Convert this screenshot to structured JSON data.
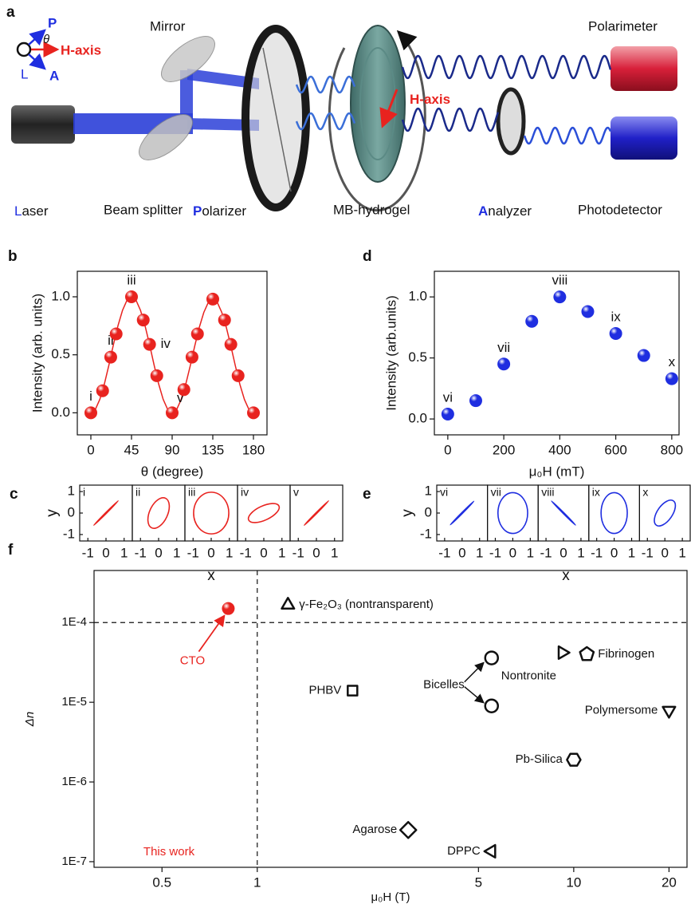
{
  "diagram": {
    "panel": "a",
    "icon": {
      "p": "P",
      "theta": "θ",
      "h_axis": "H-axis",
      "l": "L",
      "a": "A"
    },
    "labels": {
      "mirror": "Mirror",
      "polarimeter": "Polarimeter",
      "h_axis": "H-axis"
    },
    "components": [
      {
        "initial": "L",
        "rest": "aser"
      },
      {
        "text": "Beam splitter"
      },
      {
        "initial": "P",
        "rest": "olarizer"
      },
      {
        "text": "MB-hydrogel"
      },
      {
        "initial": "A",
        "rest": "nalyzer"
      },
      {
        "text": "Photodetector"
      }
    ]
  },
  "chart_data": [
    {
      "type": "scatter",
      "panel": "b",
      "xlabel": "θ (degree)",
      "ylabel": "Intensity (arb. units)",
      "xlim": [
        -15,
        195
      ],
      "ylim": [
        -0.19,
        1.22
      ],
      "xticks": [
        0,
        45,
        90,
        135,
        180
      ],
      "yticks": [
        {
          "value": 0,
          "label": "0.0"
        },
        {
          "value": 0.5,
          "label": "0.5"
        },
        {
          "value": 1,
          "label": "1.0"
        }
      ],
      "color": "#e8231f",
      "x": [
        0,
        13,
        22,
        28,
        45,
        58,
        65,
        73,
        90,
        103,
        112,
        118,
        135,
        148,
        155,
        163,
        180
      ],
      "y": [
        0,
        0.19,
        0.48,
        0.68,
        1.0,
        0.8,
        0.59,
        0.32,
        0,
        0.2,
        0.48,
        0.68,
        0.98,
        0.8,
        0.59,
        0.32,
        0
      ],
      "point_labels": [
        "i",
        null,
        "ii",
        null,
        "iii",
        null,
        "iv",
        null,
        "v",
        null,
        null,
        null,
        null,
        null,
        null,
        null,
        null
      ],
      "fit": {
        "x": [
          0,
          5,
          10,
          15,
          20,
          25,
          30,
          35,
          40,
          45,
          50,
          55,
          60,
          65,
          70,
          75,
          80,
          85,
          90,
          95,
          100,
          105,
          110,
          115,
          120,
          125,
          130,
          135,
          140,
          145,
          150,
          155,
          160,
          165,
          170,
          175,
          180
        ],
        "y": [
          0,
          0.03,
          0.117,
          0.25,
          0.413,
          0.587,
          0.75,
          0.883,
          0.97,
          1,
          0.97,
          0.883,
          0.75,
          0.587,
          0.413,
          0.25,
          0.117,
          0.03,
          0,
          0.029,
          0.115,
          0.245,
          0.405,
          0.575,
          0.735,
          0.865,
          0.951,
          0.98,
          0.951,
          0.865,
          0.735,
          0.575,
          0.405,
          0.245,
          0.115,
          0.029,
          0
        ]
      }
    },
    {
      "type": "ellipse_grid",
      "panel": "c",
      "xlabel": "x",
      "ylabel": "y",
      "color": "#e8231f",
      "xlim": [
        -1.45,
        1.45
      ],
      "ylim": [
        -1.3,
        1.3
      ],
      "xticks": [
        -1,
        0,
        1
      ],
      "yticks": [
        1,
        0,
        -1
      ],
      "plots": [
        {
          "label": "i",
          "ellipse": {
            "rx": 0.95,
            "ry": 0.02,
            "angle": 45
          }
        },
        {
          "label": "ii",
          "ellipse": {
            "rx": 0.9,
            "ry": 0.42,
            "angle": 65
          }
        },
        {
          "label": "iii",
          "ellipse": {
            "rx": 0.97,
            "ry": 0.97,
            "angle": 0
          }
        },
        {
          "label": "iv",
          "ellipse": {
            "rx": 0.92,
            "ry": 0.33,
            "angle": 25
          }
        },
        {
          "label": "v",
          "ellipse": {
            "rx": 0.95,
            "ry": 0.02,
            "angle": 45
          }
        }
      ]
    },
    {
      "type": "scatter",
      "panel": "d",
      "xlabel": "μ₀H (mT)",
      "ylabel": "Intensity (arb.units)",
      "xlim": [
        -48,
        826
      ],
      "ylim": [
        -0.13,
        1.21
      ],
      "xticks": [
        0,
        200,
        400,
        600,
        800
      ],
      "yticks": [
        {
          "value": 0,
          "label": "0.0"
        },
        {
          "value": 0.5,
          "label": "0.5"
        },
        {
          "value": 1,
          "label": "1.0"
        }
      ],
      "color": "#1f2ee0",
      "x": [
        0,
        100,
        200,
        300,
        400,
        500,
        600,
        700,
        800
      ],
      "y": [
        0.04,
        0.15,
        0.45,
        0.8,
        1.0,
        0.88,
        0.7,
        0.52,
        0.33
      ],
      "point_labels": [
        "vi",
        null,
        "vii",
        null,
        "viii",
        null,
        "ix",
        null,
        "x"
      ]
    },
    {
      "type": "ellipse_grid",
      "panel": "e",
      "xlabel": "x",
      "ylabel": "y",
      "color": "#1f2ee0",
      "xlim": [
        -1.45,
        1.45
      ],
      "ylim": [
        -1.3,
        1.3
      ],
      "xticks": [
        -1,
        0,
        1
      ],
      "yticks": [
        1,
        0,
        -1
      ],
      "plots": [
        {
          "label": "vi",
          "ellipse": {
            "rx": 0.95,
            "ry": 0.02,
            "angle": 45
          }
        },
        {
          "label": "vii",
          "ellipse": {
            "rx": 0.85,
            "ry": 0.95,
            "angle": 0
          }
        },
        {
          "label": "viii",
          "ellipse": {
            "rx": 0.97,
            "ry": 0.02,
            "angle": -45
          }
        },
        {
          "label": "ix",
          "ellipse": {
            "rx": 0.75,
            "ry": 0.95,
            "angle": 0
          }
        },
        {
          "label": "x",
          "ellipse": {
            "rx": 0.85,
            "ry": 0.35,
            "angle": 55
          }
        }
      ]
    },
    {
      "type": "scatter",
      "panel": "f",
      "xlabel": "μ₀H (T)",
      "ylabel": "Δn",
      "log_x": true,
      "log_y": true,
      "xlim": [
        0.305,
        22.8
      ],
      "ylim": [
        8.5e-08,
        0.00045
      ],
      "xticks": [
        0.5,
        1,
        5,
        10,
        20
      ],
      "yticks": [
        {
          "value": 1e-07,
          "label": "1E-7"
        },
        {
          "value": 1e-06,
          "label": "1E-6"
        },
        {
          "value": 1e-05,
          "label": "1E-5"
        },
        {
          "value": 0.0001,
          "label": "1E-4"
        }
      ],
      "ref_x": 1,
      "ref_y": 0.0001,
      "x": [
        0.81,
        1.25,
        2.0,
        5.5,
        5.5,
        9.2,
        11.0,
        20,
        10,
        3.0,
        5.5
      ],
      "y": [
        0.00015,
        0.000166,
        1.4e-05,
        3.6e-05,
        9e-06,
        4.2e-05,
        4e-05,
        7.9e-06,
        1.9e-06,
        2.5e-07,
        1.35e-07
      ],
      "markers": [
        "circle",
        "triangle-up",
        "square",
        "circle",
        "circle",
        "triangle-right",
        "pentagon",
        "triangle-down",
        "hexagon",
        "diamond",
        "triangle-left"
      ],
      "marker_colors": [
        "#e8231f",
        "#111111",
        "#111111",
        "#111111",
        "#111111",
        "#111111",
        "#111111",
        "#111111",
        "#111111",
        "#111111",
        "#111111"
      ],
      "filled": [
        true,
        false,
        false,
        false,
        false,
        false,
        false,
        false,
        false,
        false,
        false
      ],
      "point_labels": [
        "CTO",
        "γ-Fe₂O₃ (nontransparent)",
        "PHBV",
        "Nontronite",
        "Bicelles",
        null,
        "Fibrinogen",
        "Polymersome",
        "Pb-Silica",
        "Agarose",
        "DPPC"
      ],
      "annotation": "This work"
    }
  ]
}
